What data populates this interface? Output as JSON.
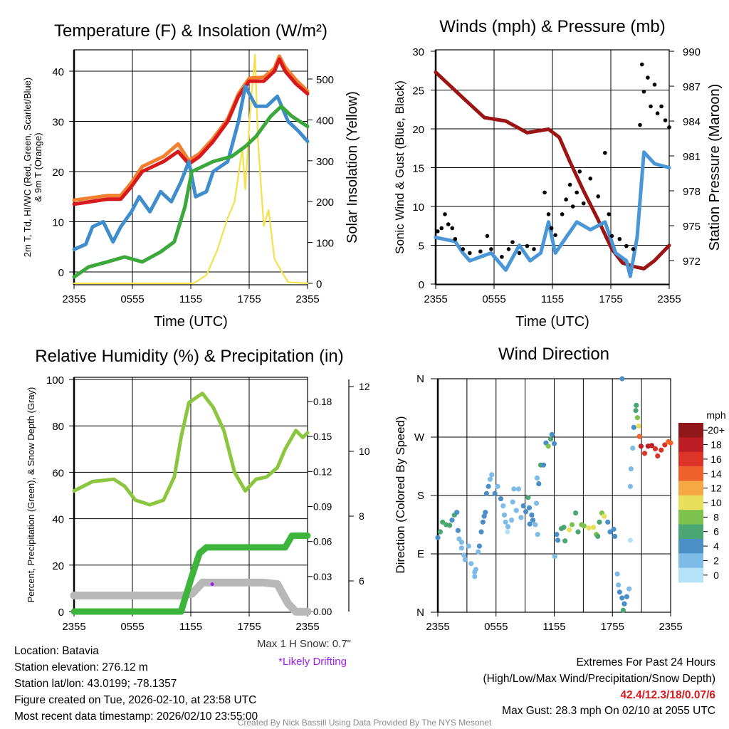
{
  "colors": {
    "temp_2m": "#d7191c",
    "temp_9m": "#f47f2f",
    "dewpoint": "#3f8dcc",
    "hi_wc": "#3aa83a",
    "solar": "#f6e04a",
    "wind": "#4a96d6",
    "gust": "#000000",
    "pressure": "#9b1515",
    "rh": "#8cc63f",
    "precip": "#3db53d",
    "snow_depth": "#b8b8b8",
    "drift": "#a020f0",
    "extremes": "#d7191c",
    "credit": "#8a8a8a"
  },
  "x_ticks": [
    "2355",
    "0555",
    "1155",
    "1755",
    "2355"
  ],
  "panels": {
    "temperature": {
      "title": "Temperature (F) & Insolation (W/m²)",
      "ylabel_line1": "2m T, Td, HI/WC (Red, Green, Scarlet/Blue)",
      "ylabel_line2": "& 9m T (Orange)",
      "y2label": "Solar Insolation (Yellow)",
      "xlabel": "Time (UTC)"
    },
    "winds": {
      "title": "Winds (mph) & Pressure (mb)",
      "ylabel": "Sonic Wind & Gust (Blue, Black)",
      "y2label": "Station Pressure (Maroon)",
      "xlabel": "Time (UTC)"
    },
    "humidity": {
      "title": "Relative Humidity (%) & Precipitation (in)",
      "ylabel": "Percent, Precipitation (Green), & Snow Depth (Gray)",
      "max_snow": "Max 1 H Snow: 0.7\"",
      "drifting_note": "*Likely Drifting"
    },
    "direction": {
      "title": "Wind Direction",
      "ylabel": "Direction (Colored By Speed)",
      "colorbar_title": "mph"
    }
  },
  "chart_data": [
    {
      "type": "line",
      "title": "Temperature (F) & Insolation (W/m²)",
      "xlabel": "Time (UTC)",
      "x_units": "hours since 2355 UTC",
      "xlim": [
        0,
        24
      ],
      "ylabel": "2m T, Td, HI/WC (Red, Green, Scarlet/Blue) & 9m T (Orange)",
      "ylim": [
        -2.5,
        44
      ],
      "yticks": [
        0,
        10,
        20,
        30,
        40
      ],
      "y2label": "Solar Insolation (Yellow)",
      "y2lim": [
        0,
        570
      ],
      "y2ticks": [
        0,
        100,
        200,
        300,
        400,
        500
      ],
      "grid": true,
      "series": [
        {
          "name": "9m T",
          "color_key": "temp_9m",
          "axis": "left",
          "x": [
            0,
            3.4,
            4.8,
            5.9,
            7,
            9.2,
            10.7,
            11.8,
            12.9,
            14.3,
            15.8,
            16.9,
            18,
            19.5,
            20.6,
            21.1,
            21.7,
            22.8,
            24
          ],
          "y": [
            14.3,
            15.2,
            15.2,
            17.8,
            21,
            23,
            25.5,
            22.2,
            23.6,
            26.6,
            30.5,
            35.5,
            38.6,
            38.8,
            40.6,
            43,
            40.8,
            38.3,
            36
          ]
        },
        {
          "name": "2m T",
          "color_key": "temp_2m",
          "axis": "left",
          "x": [
            0,
            3.4,
            4.8,
            5.9,
            7,
            9.2,
            10.7,
            11.8,
            12.9,
            14.3,
            15.8,
            16.9,
            18,
            19.5,
            20.6,
            21.1,
            21.7,
            22.8,
            24
          ],
          "y": [
            13.5,
            14.5,
            14.5,
            17,
            20,
            22,
            24,
            21.5,
            23,
            26,
            30,
            35,
            38,
            38,
            40,
            42.4,
            40,
            37.5,
            35.5
          ]
        },
        {
          "name": "Td",
          "color_key": "dewpoint",
          "axis": "left",
          "x": [
            0,
            1.2,
            1.9,
            3,
            4,
            4.8,
            5.9,
            6.7,
            7.8,
            8.9,
            10,
            11,
            11.8,
            12.5,
            13.6,
            14.3,
            15.8,
            16.9,
            17.6,
            18.7,
            19.8,
            20.9,
            22,
            23.1,
            24
          ],
          "y": [
            4.5,
            5.5,
            9,
            10,
            6,
            9,
            12,
            15,
            12,
            16,
            14,
            18,
            22,
            15,
            16,
            20,
            22,
            30,
            37,
            33,
            33,
            35,
            30,
            28,
            26
          ]
        },
        {
          "name": "HI/WC",
          "color_key": "hi_wc",
          "axis": "left",
          "x": [
            0,
            1.5,
            3.4,
            5.2,
            7,
            8.9,
            10.3,
            11.4,
            12.1,
            13.2,
            14.3,
            16.2,
            17.6,
            18.7,
            20.2,
            21.3,
            22.4,
            24
          ],
          "y": [
            -1,
            1,
            2,
            3,
            2,
            4,
            6,
            13,
            20,
            21,
            22,
            23,
            25,
            27,
            31,
            33,
            31,
            29
          ]
        },
        {
          "name": "Solar Insolation",
          "color_key": "solar",
          "axis": "right",
          "x": [
            0,
            12.3,
            13.6,
            14.7,
            15.8,
            16.5,
            17.3,
            17.6,
            18.1,
            18.6,
            18.9,
            19.5,
            20,
            20.6,
            21.3,
            22,
            24
          ],
          "y": [
            0,
            0,
            20,
            80,
            160,
            200,
            330,
            230,
            420,
            560,
            350,
            140,
            180,
            60,
            30,
            3,
            0
          ]
        }
      ]
    },
    {
      "type": "line",
      "title": "Winds (mph) & Pressure (mb)",
      "xlabel": "Time (UTC)",
      "xlim": [
        0,
        24
      ],
      "ylabel": "Sonic Wind & Gust (Blue, Black)",
      "ylim": [
        0,
        30
      ],
      "yticks": [
        0,
        5,
        10,
        15,
        20,
        25,
        30
      ],
      "y2label": "Station Pressure (Maroon)",
      "y2lim": [
        969.9,
        990
      ],
      "y2ticks": [
        972,
        975,
        978,
        981,
        984,
        987,
        990
      ],
      "grid": true,
      "series": [
        {
          "name": "Pressure",
          "color_key": "pressure",
          "axis": "right",
          "x": [
            0,
            2.8,
            5,
            7.2,
            9.4,
            11.6,
            12.7,
            13.8,
            15.2,
            16.7,
            18.1,
            19.2,
            20.3,
            21.4,
            22.5,
            24
          ],
          "y": [
            988.2,
            986,
            984.3,
            984,
            983,
            983.3,
            982.6,
            980.5,
            978,
            975.5,
            973,
            971.8,
            971.5,
            971.3,
            972,
            973.3
          ]
        },
        {
          "name": "Sonic Wind",
          "color_key": "wind",
          "axis": "left",
          "x": [
            0,
            2,
            2.8,
            3.5,
            5.7,
            7.2,
            8.6,
            9.7,
            10.8,
            11.6,
            12.3,
            13.4,
            14.5,
            15.9,
            17.4,
            18.5,
            19.6,
            20,
            20.7,
            21.4,
            22.5,
            24
          ],
          "y": [
            6,
            5.5,
            4,
            3,
            4,
            1.8,
            5,
            3,
            4,
            8,
            4,
            6,
            8,
            7,
            8,
            4,
            3,
            1,
            6,
            17,
            15.5,
            15
          ]
        },
        {
          "name": "Gust",
          "color_key": "gust",
          "axis": "left",
          "style": "scatter",
          "x": [
            0.2,
            0.6,
            0.95,
            1.3,
            1.7,
            2,
            2.8,
            3.5,
            4.6,
            5.3,
            5.7,
            6.8,
            7.5,
            7.9,
            8.6,
            9.4,
            10.1,
            11.2,
            11.6,
            11.9,
            12.3,
            13,
            13.4,
            13.8,
            14.1,
            14.5,
            14.8,
            15.2,
            15.9,
            16.7,
            17.4,
            17.8,
            18.1,
            18.9,
            19.6,
            20.3,
            21,
            21.2,
            21.4,
            21.8,
            22.1,
            22.5,
            22.8,
            23.2,
            23.6,
            24
          ],
          "y": [
            6.8,
            7.2,
            9,
            7.7,
            7.2,
            5.8,
            4.5,
            4,
            4.2,
            6.2,
            4.5,
            3.5,
            4.5,
            5.4,
            4,
            4.9,
            4.5,
            11.8,
            9,
            7.2,
            6.3,
            9,
            10.9,
            12.8,
            10,
            11.8,
            14.5,
            10.4,
            13.6,
            11.3,
            16.9,
            9,
            6.2,
            5.8,
            4.9,
            4.5,
            20.5,
            28.3,
            24.8,
            26.6,
            22.9,
            25.7,
            22,
            22.9,
            21.1,
            20.2
          ]
        }
      ]
    },
    {
      "type": "line",
      "title": "Relative Humidity (%) & Precipitation (in)",
      "xlim": [
        0,
        24
      ],
      "ylabel": "Percent, Precipitation (Green), & Snow Depth (Gray)",
      "ylim": [
        0,
        100
      ],
      "yticks": [
        0,
        20,
        40,
        60,
        80,
        100
      ],
      "y2lim": [
        0,
        0.2
      ],
      "y2ticks": [
        "0.00",
        "0.03",
        "0.06",
        "0.09",
        "0.12",
        "0.15",
        "0.18"
      ],
      "y3lim": [
        5,
        12.3
      ],
      "y3ticks": [
        6,
        8,
        10,
        12
      ],
      "grid": true,
      "series": [
        {
          "name": "Snow Depth",
          "color_key": "snow_depth",
          "axis": "snow",
          "x": [
            0,
            11,
            12.1,
            13.2,
            19.5,
            20.9,
            22,
            22.8,
            24
          ],
          "y": [
            5.55,
            5.55,
            5.6,
            5.95,
            5.95,
            5.9,
            5.3,
            5.05,
            5.05
          ]
        },
        {
          "name": "Precipitation",
          "color_key": "precip",
          "axis": "right",
          "x": [
            0,
            11,
            12.1,
            12.9,
            13.6,
            21.7,
            22.4,
            24
          ],
          "y": [
            0,
            0,
            0.03,
            0.05,
            0.055,
            0.055,
            0.065,
            0.065
          ]
        },
        {
          "name": "Relative Humidity",
          "color_key": "rh",
          "axis": "left",
          "x": [
            0,
            1.9,
            4.1,
            5.2,
            6.3,
            7.8,
            9.2,
            10.3,
            11,
            11.8,
            13.2,
            14.3,
            15.4,
            16.5,
            17.6,
            18.7,
            19.8,
            20.9,
            21.7,
            22.8,
            23.5,
            24
          ],
          "y": [
            52,
            56,
            57,
            54,
            48,
            46,
            48,
            58,
            75,
            90,
            94,
            88,
            78,
            60,
            52,
            57,
            58,
            62,
            70,
            78,
            75,
            77
          ]
        },
        {
          "name": "Likely Drifting",
          "color_key": "drift",
          "axis": "snow",
          "style": "scatter",
          "x": [
            14.2
          ],
          "y": [
            5.9
          ]
        }
      ]
    },
    {
      "type": "scatter",
      "title": "Wind Direction",
      "ylabel": "Direction (Colored By Speed)",
      "xlim": [
        0,
        24
      ],
      "ylim": [
        0,
        360
      ],
      "yticks": [
        "N",
        "E",
        "S",
        "W",
        "N"
      ],
      "ytick_values": [
        0,
        90,
        180,
        270,
        360
      ],
      "grid": true,
      "colorbar": {
        "title": "mph",
        "labels": [
          "20+",
          "18",
          "16",
          "14",
          "12",
          "10",
          "8",
          "6",
          "4",
          "2",
          "0"
        ],
        "colors": [
          "#8f1619",
          "#bc1c24",
          "#dc3428",
          "#f0622c",
          "#f6a845",
          "#e8e05a",
          "#7cc24c",
          "#4aa773",
          "#4a8fc6",
          "#7ebbe6",
          "#b6e2f7"
        ]
      },
      "points": {
        "hour": [
          0,
          0.25,
          0.49,
          0.86,
          1.22,
          1.47,
          1.71,
          1.96,
          2.08,
          2.2,
          2.45,
          2.45,
          2.7,
          2.82,
          3.18,
          3.43,
          3.8,
          3.8,
          3.92,
          4.16,
          4.29,
          4.48,
          4.65,
          4.78,
          4.9,
          5.02,
          5.22,
          5.39,
          5.56,
          5.88,
          6.17,
          6.49,
          6.74,
          6.86,
          6.98,
          7.23,
          7.18,
          7.6,
          7.72,
          7.84,
          8.09,
          8.33,
          8.58,
          8.82,
          9.07,
          9.31,
          9.43,
          9.68,
          9.8,
          9.48,
          10.05,
          10.17,
          10.29,
          10.24,
          10.41,
          10.61,
          10.9,
          11.15,
          11.39,
          11.64,
          11.76,
          12.0,
          12.05,
          12.25,
          12.37,
          12.74,
          12.99,
          13.11,
          13.55,
          13.84,
          14.21,
          14.46,
          14.82,
          15.07,
          15.56,
          16.05,
          16.34,
          16.49,
          16.66,
          16.91,
          17.15,
          17.52,
          17.76,
          18.13,
          18.25,
          18.5,
          18.62,
          18.74,
          18.99,
          19.23,
          19.48,
          19.72,
          19.11,
          19.0,
          19.85,
          19.85,
          19.92,
          20.09,
          20.21,
          20.41,
          20.46,
          20.58,
          20.7,
          20.78,
          20.95,
          21.32,
          21.68,
          22.05,
          22.42,
          22.66,
          23.03,
          23.4,
          23.77,
          24
        ],
        "deg": [
          115,
          124,
          139,
          135,
          134,
          142,
          150,
          154,
          126,
          113,
          108,
          99,
          88,
          81,
          102,
          75,
          62,
          55,
          66,
          93,
          102,
          124,
          139,
          148,
          154,
          183,
          194,
          205,
          212,
          183,
          194,
          175,
          164,
          150,
          139,
          132,
          124,
          142,
          170,
          190,
          157,
          190,
          146,
          164,
          155,
          177,
          161,
          150,
          142,
          136,
          135,
          168,
          120,
          207,
          198,
          227,
          227,
          261,
          256,
          267,
          274,
          260,
          86,
          120,
          111,
          129,
          131,
          110,
          127,
          135,
          153,
          124,
          135,
          133,
          130,
          131,
          120,
          117,
          139,
          153,
          148,
          139,
          124,
          128,
          117,
          59,
          42,
          31,
          22,
          13,
          24,
          36,
          3,
          360,
          194,
          111,
          221,
          253,
          285,
          311,
          319,
          300,
          287,
          271,
          256,
          245,
          256,
          257,
          252,
          241,
          250,
          258,
          263,
          261
        ],
        "mph": [
          4,
          6,
          6,
          6,
          6,
          4,
          6,
          4,
          4,
          2,
          2,
          2,
          2,
          2,
          2,
          2,
          2,
          2,
          2,
          2,
          4,
          4,
          4,
          4,
          4,
          4,
          4,
          2,
          2,
          4,
          2,
          4,
          2,
          2,
          2,
          2,
          0,
          2,
          2,
          2,
          2,
          2,
          2,
          4,
          4,
          6,
          4,
          4,
          4,
          4,
          2,
          2,
          2,
          2,
          4,
          6,
          4,
          4,
          8,
          6,
          4,
          4,
          2,
          4,
          4,
          6,
          6,
          6,
          10,
          8,
          6,
          6,
          8,
          8,
          10,
          10,
          8,
          6,
          6,
          8,
          10,
          4,
          4,
          4,
          4,
          2,
          2,
          4,
          4,
          4,
          4,
          2,
          6,
          4,
          2,
          0,
          2,
          2,
          4,
          6,
          6,
          8,
          10,
          14,
          18,
          16,
          18,
          18,
          16,
          16,
          16,
          16,
          14,
          14
        ]
      }
    }
  ],
  "footer": {
    "location": "Location: Batavia",
    "elevation": "Station elevation: 276.12 m",
    "latlon": "Station lat/lon: 43.0199; -78.1357",
    "created": "Figure created on Tue, 2026-02-10, at 23:58 UTC",
    "recent": "Most recent data timestamp: 2026/02/10 23:55:00",
    "extremes_title": "Extremes For Past 24 Hours",
    "extremes_legend": "(High/Low/Max Wind/Precipitation/Snow Depth)",
    "extremes_values": "42.4/12.3/18/0.07/6",
    "max_gust": "Max Gust: 28.3 mph On 02/10 at 2055 UTC",
    "credit": "Created By Nick Bassill Using Data Provided By The NYS Mesonet"
  }
}
